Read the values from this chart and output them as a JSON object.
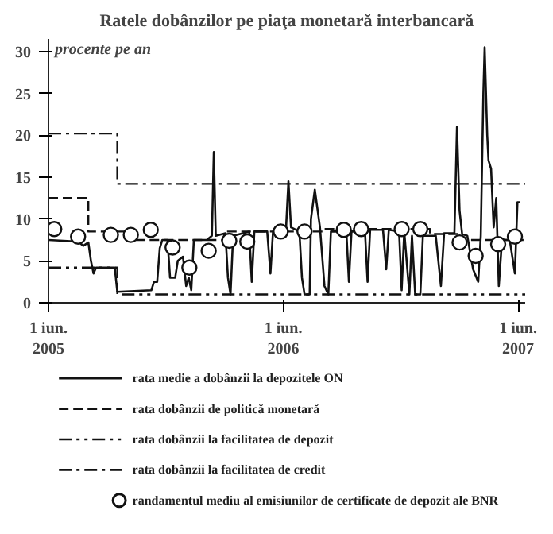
{
  "chart_data": {
    "type": "line",
    "title": "Ratele dobânzilor pe piaţa monetară interbancară",
    "ylabel": "procente pe an",
    "xlim": [
      "2005-06-01",
      "2007-06-12"
    ],
    "ylim": [
      0,
      31.5
    ],
    "yticks": [
      0,
      5,
      10,
      15,
      20,
      25,
      30
    ],
    "xticks": [
      {
        "value": "2005-06-01",
        "label": "1 iun.\n2005"
      },
      {
        "value": "2006-06-01",
        "label": "1 iun.\n2006"
      },
      {
        "value": "2007-06-01",
        "label": "1 iun.\n2007"
      }
    ],
    "grid": false,
    "legend": "bottom",
    "marker": "none",
    "series": [
      {
        "name": "rata medie a dobânzii la depozitele ON",
        "color": "#111111",
        "line_style": "solid",
        "x": [
          "2005-06-01",
          "2005-07-17",
          "2005-07-25",
          "2005-08-02",
          "2005-08-06",
          "2005-08-10",
          "2005-08-14",
          "2005-09-12",
          "2005-09-16",
          "2005-11-08",
          "2005-11-12",
          "2005-11-17",
          "2005-11-21",
          "2005-11-25",
          "2005-12-03",
          "2005-12-07",
          "2005-12-15",
          "2005-12-19",
          "2005-12-27",
          "2006-01-01",
          "2006-01-05",
          "2006-01-09",
          "2006-01-13",
          "2006-02-02",
          "2006-02-10",
          "2006-02-13",
          "2006-02-16",
          "2006-03-03",
          "2006-03-07",
          "2006-03-11",
          "2006-03-15",
          "2006-04-09",
          "2006-04-13",
          "2006-04-17",
          "2006-05-07",
          "2006-05-12",
          "2006-05-16",
          "2006-06-05",
          "2006-06-09",
          "2006-06-13",
          "2006-06-26",
          "2006-06-30",
          "2006-07-04",
          "2006-07-12",
          "2006-07-14",
          "2006-07-20",
          "2006-07-28",
          "2006-08-04",
          "2006-08-10",
          "2006-08-14",
          "2006-09-07",
          "2006-09-11",
          "2006-09-15",
          "2006-10-06",
          "2006-10-10",
          "2006-10-14",
          "2006-11-03",
          "2006-11-08",
          "2006-11-12",
          "2006-11-28",
          "2006-12-02",
          "2006-12-06",
          "2006-12-14",
          "2006-12-18",
          "2006-12-23",
          "2006-12-31",
          "2007-01-04",
          "2007-01-24",
          "2007-01-28",
          "2007-02-01",
          "2007-02-06",
          "2007-02-22",
          "2007-02-26",
          "2007-03-02",
          "2007-03-06",
          "2007-03-14",
          "2007-03-23",
          "2007-03-31",
          "2007-04-04",
          "2007-04-08",
          "2007-04-10",
          "2007-04-14",
          "2007-04-16",
          "2007-04-20",
          "2007-04-24",
          "2007-04-28",
          "2007-05-02",
          "2007-05-07",
          "2007-05-19",
          "2007-05-27",
          "2007-05-31",
          "2007-06-04"
        ],
        "values": [
          7.5,
          7.3,
          6.8,
          7.2,
          5,
          3.5,
          4.2,
          4.2,
          1.3,
          1.5,
          2.5,
          2.5,
          6.5,
          7.5,
          7.5,
          3,
          3,
          5,
          5.5,
          2,
          3,
          1.5,
          7.5,
          7.5,
          8,
          18,
          8,
          8.3,
          3,
          1,
          8,
          8.5,
          2.5,
          8.5,
          8.5,
          3.5,
          8.5,
          8.5,
          14.5,
          9,
          8.5,
          3,
          1,
          1,
          10,
          13.5,
          9,
          2,
          1,
          8.5,
          8.5,
          2.5,
          8.5,
          8.5,
          2.5,
          8.7,
          8.7,
          4,
          8.7,
          8.5,
          1.5,
          8.5,
          1,
          8,
          1,
          1,
          8,
          8,
          5,
          2,
          8.3,
          8.3,
          21,
          11,
          8.2,
          8,
          4,
          2.5,
          8,
          25,
          30.5,
          20,
          17,
          16,
          9,
          12.5,
          2,
          7.5,
          7.5,
          3.5,
          12,
          12
        ]
      },
      {
        "name": "rata dobânzii de politică monetară",
        "color": "#111111",
        "type": "step",
        "line_style": "dashed",
        "x": [
          "2005-06-01",
          "2005-08-02",
          "2005-10-01",
          "2006-03-01",
          "2006-08-01",
          "2007-01-15",
          "2007-03-01",
          "2007-06-12"
        ],
        "values": [
          12.5,
          8.5,
          7.5,
          8.5,
          8.8,
          8.2,
          7.5,
          7.5
        ]
      },
      {
        "name": "rata dobânzii la facilitatea de depozit",
        "color": "#111111",
        "type": "step",
        "line_style": "dashdotdot",
        "x": [
          "2005-06-01",
          "2005-09-16",
          "2007-06-12"
        ],
        "values": [
          4.2,
          1,
          1
        ]
      },
      {
        "name": "rata dobânzii la facilitatea de credit",
        "color": "#111111",
        "type": "step",
        "line_style": "dashdot",
        "x": [
          "2005-06-01",
          "2005-09-16",
          "2007-06-12"
        ],
        "values": [
          20.2,
          14.2,
          14.2
        ]
      },
      {
        "name": "randamentul mediu al emisiunilor de certificate de depozit ale BNR",
        "color": "#111111",
        "type": "scatter",
        "marker": "circle",
        "x": [
          "2005-06-10",
          "2005-07-17",
          "2005-09-06",
          "2005-10-07",
          "2005-11-07",
          "2005-12-11",
          "2006-01-06",
          "2006-02-05",
          "2006-03-09",
          "2006-04-06",
          "2006-05-28",
          "2006-07-04",
          "2006-09-03",
          "2006-09-30",
          "2006-12-02",
          "2006-12-31",
          "2007-03-02",
          "2007-03-27",
          "2007-05-01",
          "2007-05-27"
        ],
        "values": [
          8.8,
          7.9,
          8.1,
          8.1,
          8.7,
          6.6,
          4.2,
          6.2,
          7.4,
          7.3,
          8.5,
          8.5,
          8.7,
          8.8,
          8.8,
          8.8,
          7.2,
          5.6,
          7.0,
          7.9
        ]
      }
    ]
  }
}
